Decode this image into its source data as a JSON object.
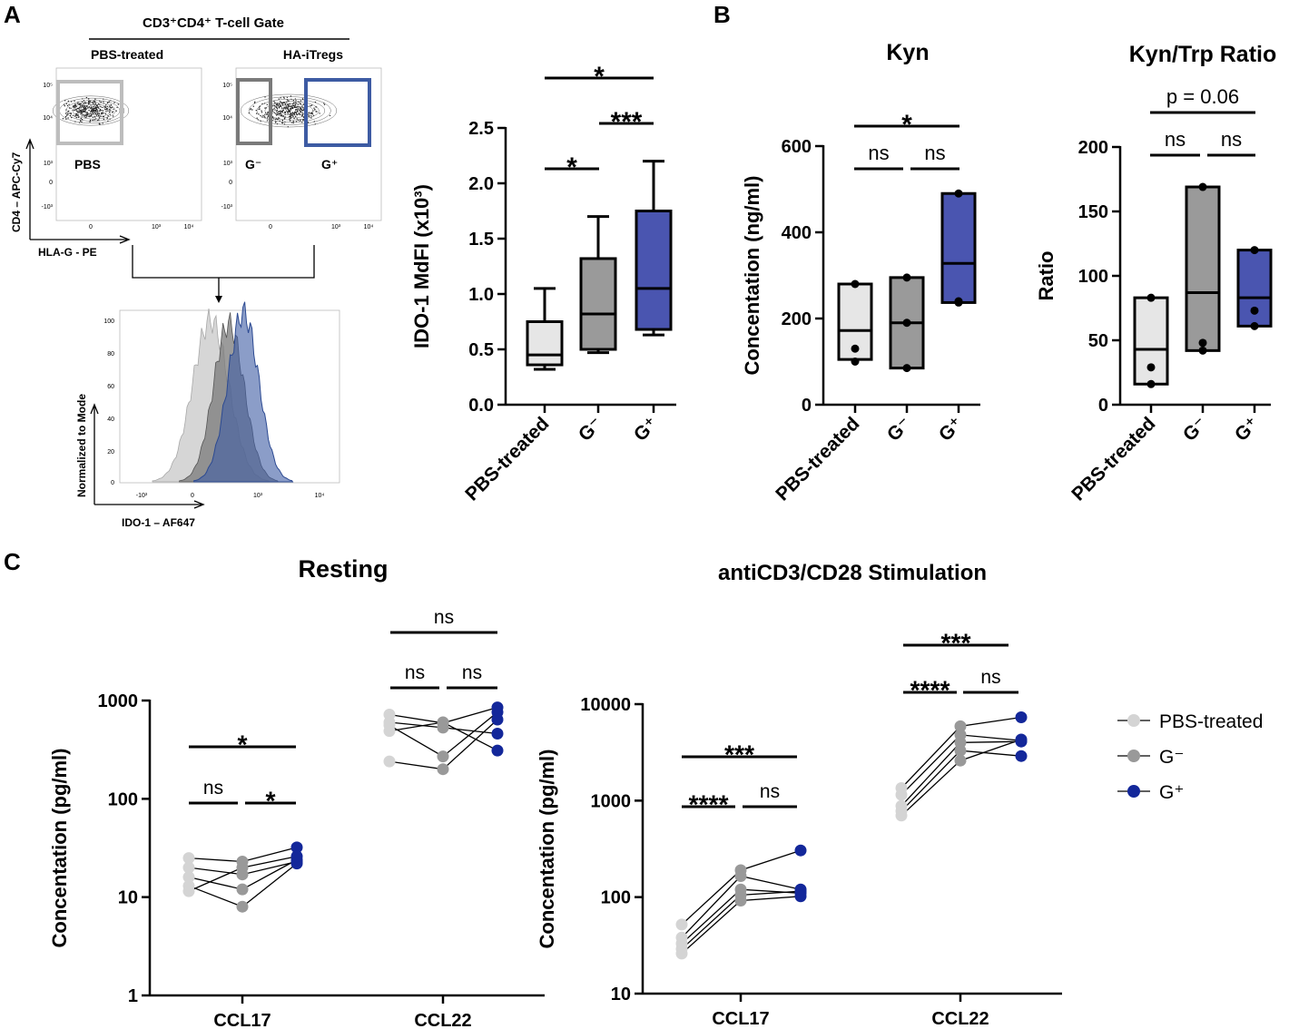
{
  "panels": {
    "a": "A",
    "b": "B",
    "c": "C"
  },
  "flow": {
    "gate_title": "CD3⁺CD4⁺ T-cell Gate",
    "pbs_label": "PBS-treated",
    "ha_label": "HA-iTregs",
    "gate_pbs": "PBS",
    "gate_gminus": "G⁻",
    "gate_gplus": "G⁺",
    "y_axis": "CD4 – APC-Cy7",
    "x_axis": "HLA-G - PE",
    "hist_ylabel": "Normalized to Mode",
    "hist_xlabel": "IDO-1 – AF647",
    "dot_ticks_y": [
      "10⁵",
      "10⁴",
      "10³",
      "0",
      "-10³"
    ],
    "dot_ticks_x": [
      "0",
      "10³",
      "10⁴"
    ],
    "hist_ticks_y": [
      "100",
      "80",
      "60",
      "40",
      "20",
      "0"
    ],
    "hist_ticks_x": [
      "-10³",
      "0",
      "10³",
      "10⁴"
    ],
    "colors": {
      "pbs": "#c8c8c8",
      "gminus": "#7a7a7a",
      "gplus": "#3d5ba3"
    }
  },
  "colors": {
    "pbs_box": "#e6e6e6",
    "gminus_box": "#9a9a9a",
    "gplus_box": "#4a55b0",
    "pbs_dot": "#d4d4d4",
    "gminus_dot": "#999999",
    "gplus_dot": "#13279a"
  },
  "chart_data": [
    {
      "id": "ido1",
      "type": "box",
      "title": "",
      "ylabel": "IDO-1 MdFI (x10³)",
      "ylim": [
        0,
        2.5
      ],
      "yticks": [
        "0.0",
        "0.5",
        "1.0",
        "1.5",
        "2.0",
        "2.5"
      ],
      "categories": [
        "PBS-treated",
        "G⁻",
        "G⁺"
      ],
      "boxes": [
        {
          "min": 0.32,
          "q1": 0.36,
          "median": 0.45,
          "q3": 0.75,
          "max": 1.05
        },
        {
          "min": 0.47,
          "q1": 0.5,
          "median": 0.82,
          "q3": 1.32,
          "max": 1.7
        },
        {
          "min": 0.63,
          "q1": 0.68,
          "median": 1.05,
          "q3": 1.75,
          "max": 2.2
        }
      ],
      "significance": [
        {
          "from": 0,
          "to": 1,
          "label": "*"
        },
        {
          "from": 1,
          "to": 2,
          "label": "***"
        },
        {
          "from": 0,
          "to": 2,
          "label": "*"
        }
      ]
    },
    {
      "id": "kyn",
      "type": "floating-bar",
      "title": "Kyn",
      "ylabel": "Concentation (ng/ml)",
      "ylim": [
        0,
        600
      ],
      "yticks": [
        "0",
        "200",
        "400",
        "600"
      ],
      "categories": [
        "PBS-treated",
        "G⁻",
        "G⁺"
      ],
      "bars": [
        {
          "min": 105,
          "median": 172,
          "max": 280
        },
        {
          "min": 85,
          "median": 190,
          "max": 295
        },
        {
          "min": 237,
          "median": 328,
          "max": 490
        }
      ],
      "points": [
        [
          280,
          130,
          100
        ],
        [
          295,
          190,
          85
        ],
        [
          490,
          240,
          237
        ]
      ],
      "significance": [
        {
          "from": 0,
          "to": 1,
          "label": "ns"
        },
        {
          "from": 1,
          "to": 2,
          "label": "ns"
        },
        {
          "from": 0,
          "to": 2,
          "label": "*"
        }
      ]
    },
    {
      "id": "ratio",
      "type": "floating-bar",
      "title": "Kyn/Trp Ratio",
      "ylabel": "Ratio",
      "ylim": [
        0,
        200
      ],
      "yticks": [
        "0",
        "50",
        "100",
        "150",
        "200"
      ],
      "categories": [
        "PBS-treated",
        "G⁻",
        "G⁺"
      ],
      "bars": [
        {
          "min": 16,
          "median": 43,
          "max": 83
        },
        {
          "min": 42,
          "median": 87,
          "max": 169
        },
        {
          "min": 61,
          "median": 83,
          "max": 120
        }
      ],
      "points": [
        [
          83,
          29,
          16
        ],
        [
          169,
          48,
          42
        ],
        [
          120,
          73,
          61
        ]
      ],
      "significance": [
        {
          "from": 0,
          "to": 1,
          "label": "ns"
        },
        {
          "from": 1,
          "to": 2,
          "label": "ns"
        },
        {
          "from": 0,
          "to": 2,
          "label": "p = 0.06"
        }
      ]
    },
    {
      "id": "resting",
      "type": "paired-scatter",
      "title": "Resting",
      "ylabel": "Concentation (pg/ml)",
      "yscale": "log",
      "ylim": [
        1,
        1000
      ],
      "yticks": [
        "1",
        "10",
        "100",
        "1000"
      ],
      "categories": [
        "CCL17",
        "CCL22"
      ],
      "groups": [
        "PBS-treated",
        "G⁻",
        "G⁺"
      ],
      "pairs": [
        [
          [
            25,
            23,
            32
          ],
          [
            20,
            17,
            23
          ],
          [
            16,
            12,
            24
          ],
          [
            13,
            8,
            22
          ],
          [
            11.5,
            20,
            26
          ]
        ],
        [
          [
            720,
            590,
            850
          ],
          [
            600,
            530,
            460
          ],
          [
            560,
            270,
            760
          ],
          [
            490,
            600,
            310
          ],
          [
            240,
            200,
            640
          ]
        ]
      ],
      "significance": [
        {
          "category": 0,
          "from": 0,
          "to": 1,
          "label": "ns"
        },
        {
          "category": 0,
          "from": 1,
          "to": 2,
          "label": "*"
        },
        {
          "category": 0,
          "from": 0,
          "to": 2,
          "label": "*"
        },
        {
          "category": 1,
          "from": 0,
          "to": 1,
          "label": "ns"
        },
        {
          "category": 1,
          "from": 1,
          "to": 2,
          "label": "ns"
        },
        {
          "category": 1,
          "from": 0,
          "to": 2,
          "label": "ns"
        }
      ]
    },
    {
      "id": "stim",
      "type": "paired-scatter",
      "title": "antiCD3/CD28 Stimulation",
      "ylabel": "Concentation (pg/ml)",
      "yscale": "log",
      "ylim": [
        10,
        10000
      ],
      "yticks": [
        "10",
        "100",
        "1000",
        "10000"
      ],
      "categories": [
        "CCL17",
        "CCL22"
      ],
      "groups": [
        "PBS-treated",
        "G⁻",
        "G⁺"
      ],
      "pairs": [
        [
          [
            52,
            190,
            305
          ],
          [
            38,
            165,
            120
          ],
          [
            33,
            120,
            110
          ],
          [
            29,
            105,
            115
          ],
          [
            26,
            92,
            102
          ]
        ],
        [
          [
            1350,
            5900,
            7300
          ],
          [
            1150,
            4800,
            4200
          ],
          [
            880,
            4000,
            4100
          ],
          [
            780,
            3300,
            2900
          ],
          [
            700,
            2600,
            4300
          ]
        ]
      ],
      "significance": [
        {
          "category": 0,
          "from": 0,
          "to": 1,
          "label": "****"
        },
        {
          "category": 0,
          "from": 1,
          "to": 2,
          "label": "ns"
        },
        {
          "category": 0,
          "from": 0,
          "to": 2,
          "label": "***"
        },
        {
          "category": 1,
          "from": 0,
          "to": 1,
          "label": "****"
        },
        {
          "category": 1,
          "from": 1,
          "to": 2,
          "label": "ns"
        },
        {
          "category": 1,
          "from": 0,
          "to": 2,
          "label": "***"
        }
      ]
    }
  ],
  "legend": {
    "items": [
      "PBS-treated",
      "G⁻",
      "G⁺"
    ],
    "placement": "right"
  }
}
